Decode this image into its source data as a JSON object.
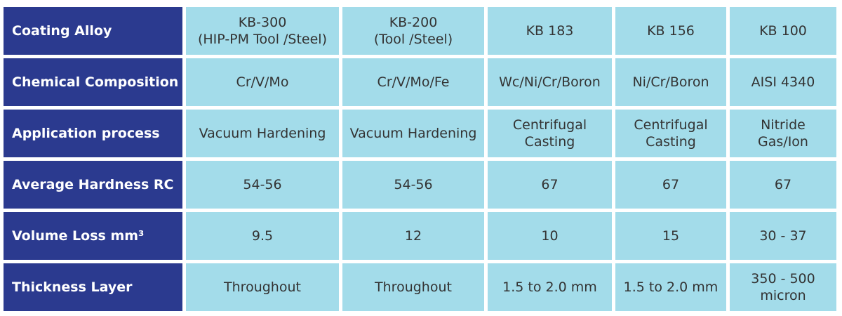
{
  "table": {
    "header": {
      "label": "Coating Alloy",
      "columns": [
        "KB-300\n(HIP-PM Tool /Steel)",
        "KB-200\n(Tool /Steel)",
        "KB 183",
        "KB 156",
        "KB 100"
      ]
    },
    "rows": [
      {
        "label": "Chemical Composition",
        "cells": [
          "Cr/V/Mo",
          "Cr/V/Mo/Fe",
          "Wc/Ni/Cr/Boron",
          "Ni/Cr/Boron",
          "AISI 4340"
        ]
      },
      {
        "label": "Application process",
        "cells": [
          "Vacuum Hardening",
          "Vacuum Hardening",
          "Centrifugal\nCasting",
          "Centrifugal\nCasting",
          "Nitride\nGas/Ion"
        ]
      },
      {
        "label": "Average Hardness RC",
        "cells": [
          "54-56",
          "54-56",
          "67",
          "67",
          "67"
        ]
      },
      {
        "label": "Volume Loss mm³",
        "cells": [
          "9.5",
          "12",
          "10",
          "15",
          "30 - 37"
        ]
      },
      {
        "label": "Thickness Layer",
        "cells": [
          "Throughout",
          "Throughout",
          "1.5 to 2.0 mm",
          "1.5 to 2.0 mm",
          "350 - 500\nmicron"
        ]
      }
    ]
  }
}
